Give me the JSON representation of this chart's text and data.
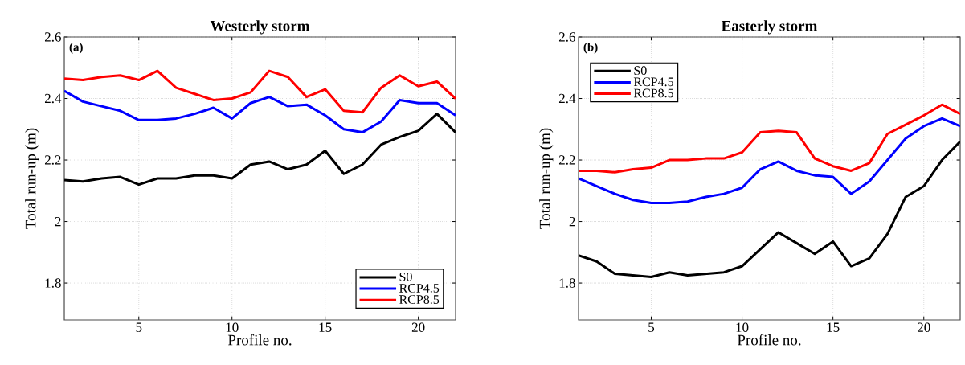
{
  "chart_data": [
    {
      "type": "line",
      "title": "Westerly storm",
      "xlabel": "Profile no.",
      "ylabel": "Total run-up (m)",
      "annotations": [
        "(a)"
      ],
      "x": [
        1,
        2,
        3,
        4,
        5,
        6,
        7,
        8,
        9,
        10,
        11,
        12,
        13,
        14,
        15,
        16,
        17,
        18,
        19,
        20,
        21,
        22
      ],
      "xlim": [
        1,
        22
      ],
      "xticks": [
        5,
        10,
        15,
        20
      ],
      "ylim": [
        1.68,
        2.6
      ],
      "yticks": [
        1.8,
        2,
        2.2,
        2.4,
        2.6
      ],
      "grid": true,
      "legend": "bottom right",
      "line_style": "solid",
      "series": [
        {
          "name": "S0",
          "color": "#000000",
          "values": [
            2.135,
            2.13,
            2.14,
            2.145,
            2.12,
            2.14,
            2.14,
            2.15,
            2.15,
            2.14,
            2.185,
            2.195,
            2.17,
            2.185,
            2.23,
            2.155,
            2.185,
            2.25,
            2.275,
            2.295,
            2.35,
            2.29
          ]
        },
        {
          "name": "RCP4.5",
          "color": "#0000ff",
          "values": [
            2.425,
            2.39,
            2.375,
            2.36,
            2.33,
            2.33,
            2.335,
            2.35,
            2.37,
            2.335,
            2.385,
            2.405,
            2.375,
            2.38,
            2.345,
            2.3,
            2.29,
            2.325,
            2.395,
            2.385,
            2.385,
            2.345
          ]
        },
        {
          "name": "RCP8.5",
          "color": "#ff0000",
          "values": [
            2.465,
            2.46,
            2.47,
            2.475,
            2.46,
            2.49,
            2.435,
            2.415,
            2.395,
            2.4,
            2.42,
            2.49,
            2.47,
            2.405,
            2.43,
            2.36,
            2.355,
            2.435,
            2.475,
            2.44,
            2.455,
            2.4
          ]
        }
      ]
    },
    {
      "type": "line",
      "title": "Easterly storm",
      "xlabel": "Profile no.",
      "ylabel": "Total run-up (m)",
      "annotations": [
        "(b)"
      ],
      "x": [
        1,
        2,
        3,
        4,
        5,
        6,
        7,
        8,
        9,
        10,
        11,
        12,
        13,
        14,
        15,
        16,
        17,
        18,
        19,
        20,
        21,
        22
      ],
      "xlim": [
        1,
        22
      ],
      "xticks": [
        5,
        10,
        15,
        20
      ],
      "ylim": [
        1.68,
        2.6
      ],
      "yticks": [
        1.8,
        2,
        2.2,
        2.4,
        2.6
      ],
      "grid": true,
      "legend": "top left",
      "line_style": "solid",
      "series": [
        {
          "name": "S0",
          "color": "#000000",
          "values": [
            1.89,
            1.87,
            1.83,
            1.825,
            1.82,
            1.835,
            1.825,
            1.83,
            1.835,
            1.855,
            1.91,
            1.965,
            1.93,
            1.895,
            1.935,
            1.855,
            1.88,
            1.96,
            2.08,
            2.115,
            2.2,
            2.26
          ]
        },
        {
          "name": "RCP4.5",
          "color": "#0000ff",
          "values": [
            2.14,
            2.115,
            2.09,
            2.07,
            2.06,
            2.06,
            2.065,
            2.08,
            2.09,
            2.11,
            2.17,
            2.195,
            2.165,
            2.15,
            2.145,
            2.09,
            2.13,
            2.2,
            2.27,
            2.31,
            2.335,
            2.31
          ]
        },
        {
          "name": "RCP8.5",
          "color": "#ff0000",
          "values": [
            2.165,
            2.165,
            2.16,
            2.17,
            2.175,
            2.2,
            2.2,
            2.205,
            2.205,
            2.225,
            2.29,
            2.295,
            2.29,
            2.205,
            2.18,
            2.165,
            2.19,
            2.285,
            2.315,
            2.345,
            2.38,
            2.35
          ]
        }
      ]
    }
  ]
}
